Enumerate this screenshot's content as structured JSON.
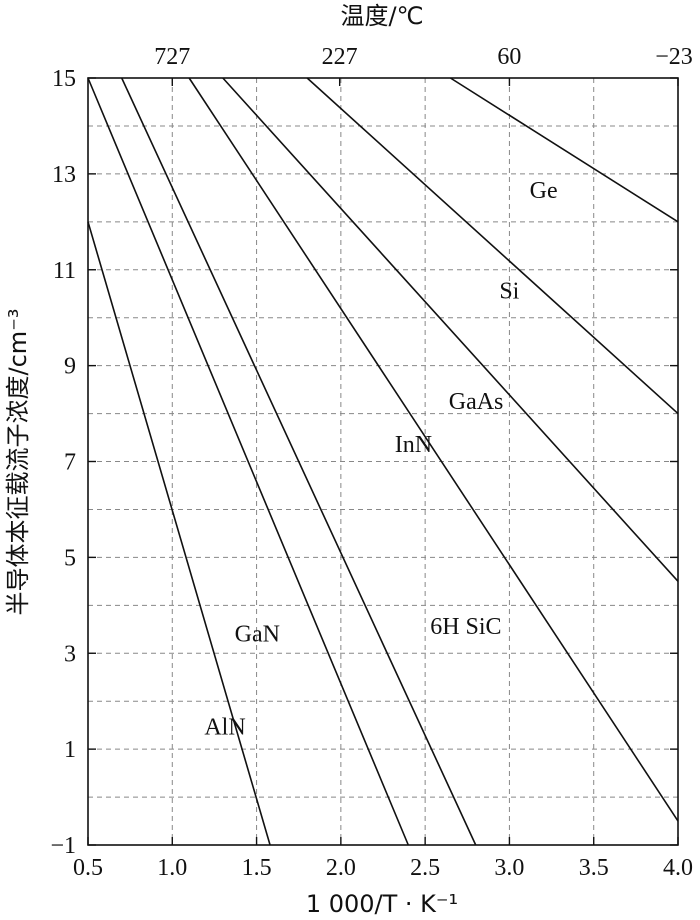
{
  "chart_data": {
    "type": "line",
    "xlabel": "1 000/T · K⁻¹",
    "ylabel": "半导体本征载流子浓度/cm⁻³",
    "top_axis_label": "温度/℃",
    "xlim": [
      0.5,
      4.0
    ],
    "ylim": [
      -1,
      15
    ],
    "x_ticks": [
      0.5,
      1.0,
      1.5,
      2.0,
      2.5,
      3.0,
      3.5,
      4.0
    ],
    "x_tick_labels": [
      "0.5",
      "1.0",
      "1.5",
      "2.0",
      "2.5",
      "3.0",
      "3.5",
      "4.0"
    ],
    "y_ticks": [
      -1,
      1,
      3,
      5,
      7,
      9,
      11,
      13,
      15
    ],
    "y_tick_labels": [
      "−1",
      "1",
      "3",
      "5",
      "7",
      "9",
      "11",
      "13",
      "15"
    ],
    "top_ticks": [
      {
        "x": 1.0,
        "label": "727"
      },
      {
        "x": 1.993,
        "label": "227"
      },
      {
        "x": 3.0,
        "label": "60"
      },
      {
        "x": 4.0,
        "label": "−23"
      }
    ],
    "grid": true,
    "series": [
      {
        "name": "Ge",
        "x": [
          2.65,
          4.0
        ],
        "y": [
          15,
          12.0
        ]
      },
      {
        "name": "Si",
        "x": [
          1.8,
          4.0
        ],
        "y": [
          15,
          8.0
        ]
      },
      {
        "name": "GaAs",
        "x": [
          1.3,
          4.0
        ],
        "y": [
          15,
          4.5
        ]
      },
      {
        "name": "InN",
        "x": [
          1.1,
          4.0
        ],
        "y": [
          15,
          -0.5
        ]
      },
      {
        "name": "6H SiC",
        "x": [
          0.7,
          2.8
        ],
        "y": [
          15,
          -1
        ]
      },
      {
        "name": "GaN",
        "x": [
          0.5,
          2.4
        ],
        "y": [
          15,
          -1
        ]
      },
      {
        "name": "AlN",
        "x": [
          0.5,
          1.58
        ],
        "y": [
          12,
          -1
        ]
      }
    ],
    "series_labels": [
      {
        "name": "Ge",
        "x": 3.12,
        "y": 12.5
      },
      {
        "name": "Si",
        "x": 2.94,
        "y": 10.4
      },
      {
        "name": "GaAs",
        "x": 2.64,
        "y": 8.1
      },
      {
        "name": "InN",
        "x": 2.32,
        "y": 7.2
      },
      {
        "name": "6H SiC",
        "x": 2.53,
        "y": 3.4
      },
      {
        "name": "GaN",
        "x": 1.37,
        "y": 3.25
      },
      {
        "name": "AlN",
        "x": 1.19,
        "y": 1.3
      }
    ]
  }
}
